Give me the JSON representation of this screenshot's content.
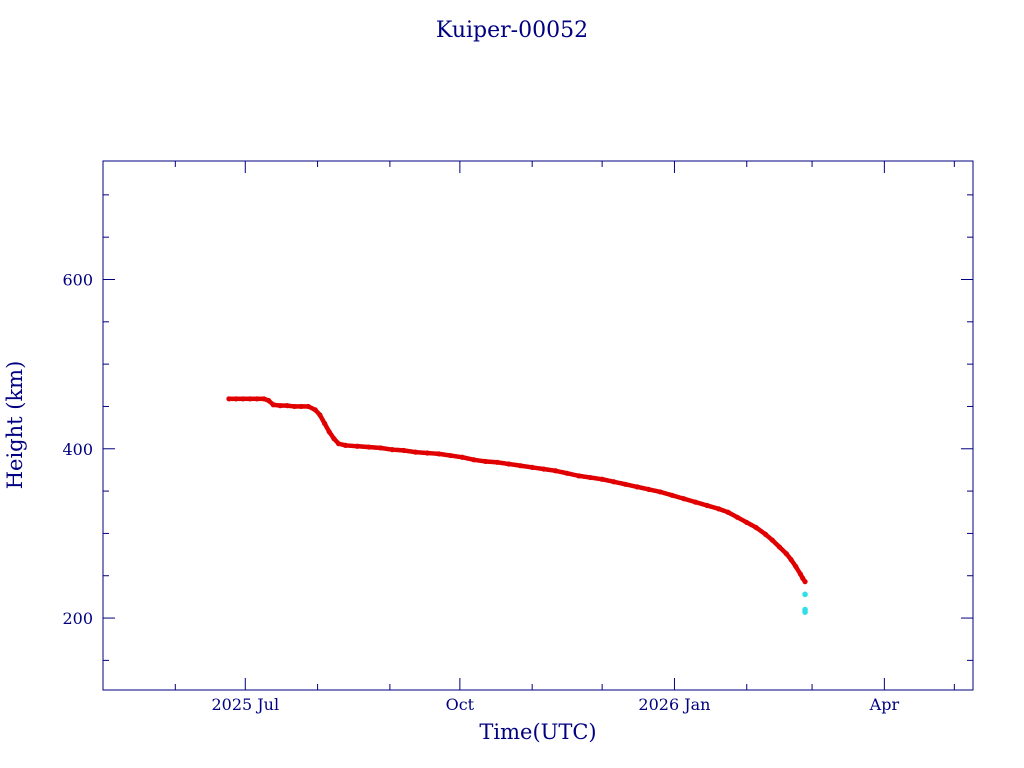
{
  "chart_data": {
    "type": "scatter",
    "title": "Kuiper-00052",
    "xlabel": "Time(UTC)",
    "ylabel": "Height (km)",
    "xlim": [
      "2025-05-01",
      "2026-05-09"
    ],
    "ylim": [
      115,
      740
    ],
    "x_ticks": [
      {
        "date": "2025-07-01",
        "label": "2025 Jul"
      },
      {
        "date": "2025-10-01",
        "label": "Oct"
      },
      {
        "date": "2026-01-01",
        "label": "2026 Jan"
      },
      {
        "date": "2026-04-01",
        "label": "Apr"
      }
    ],
    "y_ticks": [
      200,
      400,
      600
    ],
    "grid": false,
    "colors": {
      "axis": "#000080",
      "series": "#e00000",
      "final_points": "#30e0e8"
    },
    "series": [
      {
        "color": "#e00000",
        "points": [
          [
            "2025-06-24",
            459
          ],
          [
            "2025-06-27",
            459
          ],
          [
            "2025-06-30",
            459
          ],
          [
            "2025-07-03",
            459
          ],
          [
            "2025-07-06",
            459
          ],
          [
            "2025-07-09",
            459
          ],
          [
            "2025-07-11",
            457
          ],
          [
            "2025-07-13",
            452
          ],
          [
            "2025-07-16",
            451
          ],
          [
            "2025-07-19",
            451
          ],
          [
            "2025-07-22",
            450
          ],
          [
            "2025-07-25",
            450
          ],
          [
            "2025-07-28",
            450
          ],
          [
            "2025-07-31",
            446
          ],
          [
            "2025-08-02",
            440
          ],
          [
            "2025-08-04",
            430
          ],
          [
            "2025-08-06",
            420
          ],
          [
            "2025-08-08",
            412
          ],
          [
            "2025-08-10",
            406
          ],
          [
            "2025-08-13",
            404
          ],
          [
            "2025-08-18",
            403
          ],
          [
            "2025-08-23",
            402
          ],
          [
            "2025-08-28",
            401
          ],
          [
            "2025-09-02",
            399
          ],
          [
            "2025-09-07",
            398
          ],
          [
            "2025-09-12",
            396
          ],
          [
            "2025-09-17",
            395
          ],
          [
            "2025-09-22",
            394
          ],
          [
            "2025-09-27",
            392
          ],
          [
            "2025-10-02",
            390
          ],
          [
            "2025-10-07",
            387
          ],
          [
            "2025-10-12",
            385
          ],
          [
            "2025-10-17",
            384
          ],
          [
            "2025-10-22",
            382
          ],
          [
            "2025-10-27",
            380
          ],
          [
            "2025-11-01",
            378
          ],
          [
            "2025-11-06",
            376
          ],
          [
            "2025-11-11",
            374
          ],
          [
            "2025-11-16",
            371
          ],
          [
            "2025-11-21",
            368
          ],
          [
            "2025-11-26",
            366
          ],
          [
            "2025-12-01",
            364
          ],
          [
            "2025-12-06",
            361
          ],
          [
            "2025-12-11",
            358
          ],
          [
            "2025-12-16",
            355
          ],
          [
            "2025-12-21",
            352
          ],
          [
            "2025-12-26",
            349
          ],
          [
            "2025-12-31",
            345
          ],
          [
            "2026-01-05",
            341
          ],
          [
            "2026-01-10",
            337
          ],
          [
            "2026-01-15",
            333
          ],
          [
            "2026-01-20",
            329
          ],
          [
            "2026-01-24",
            325
          ],
          [
            "2026-01-28",
            319
          ],
          [
            "2026-02-01",
            313
          ],
          [
            "2026-02-05",
            307
          ],
          [
            "2026-02-09",
            299
          ],
          [
            "2026-02-12",
            292
          ],
          [
            "2026-02-15",
            284
          ],
          [
            "2026-02-18",
            276
          ],
          [
            "2026-02-20",
            269
          ],
          [
            "2026-02-22",
            261
          ],
          [
            "2026-02-24",
            252
          ],
          [
            "2026-02-25",
            247
          ],
          [
            "2026-02-26",
            243
          ]
        ]
      },
      {
        "color": "#30e0e8",
        "points": [
          [
            "2026-02-26",
            228
          ],
          [
            "2026-02-26",
            210
          ],
          [
            "2026-02-26",
            207
          ]
        ]
      }
    ]
  }
}
